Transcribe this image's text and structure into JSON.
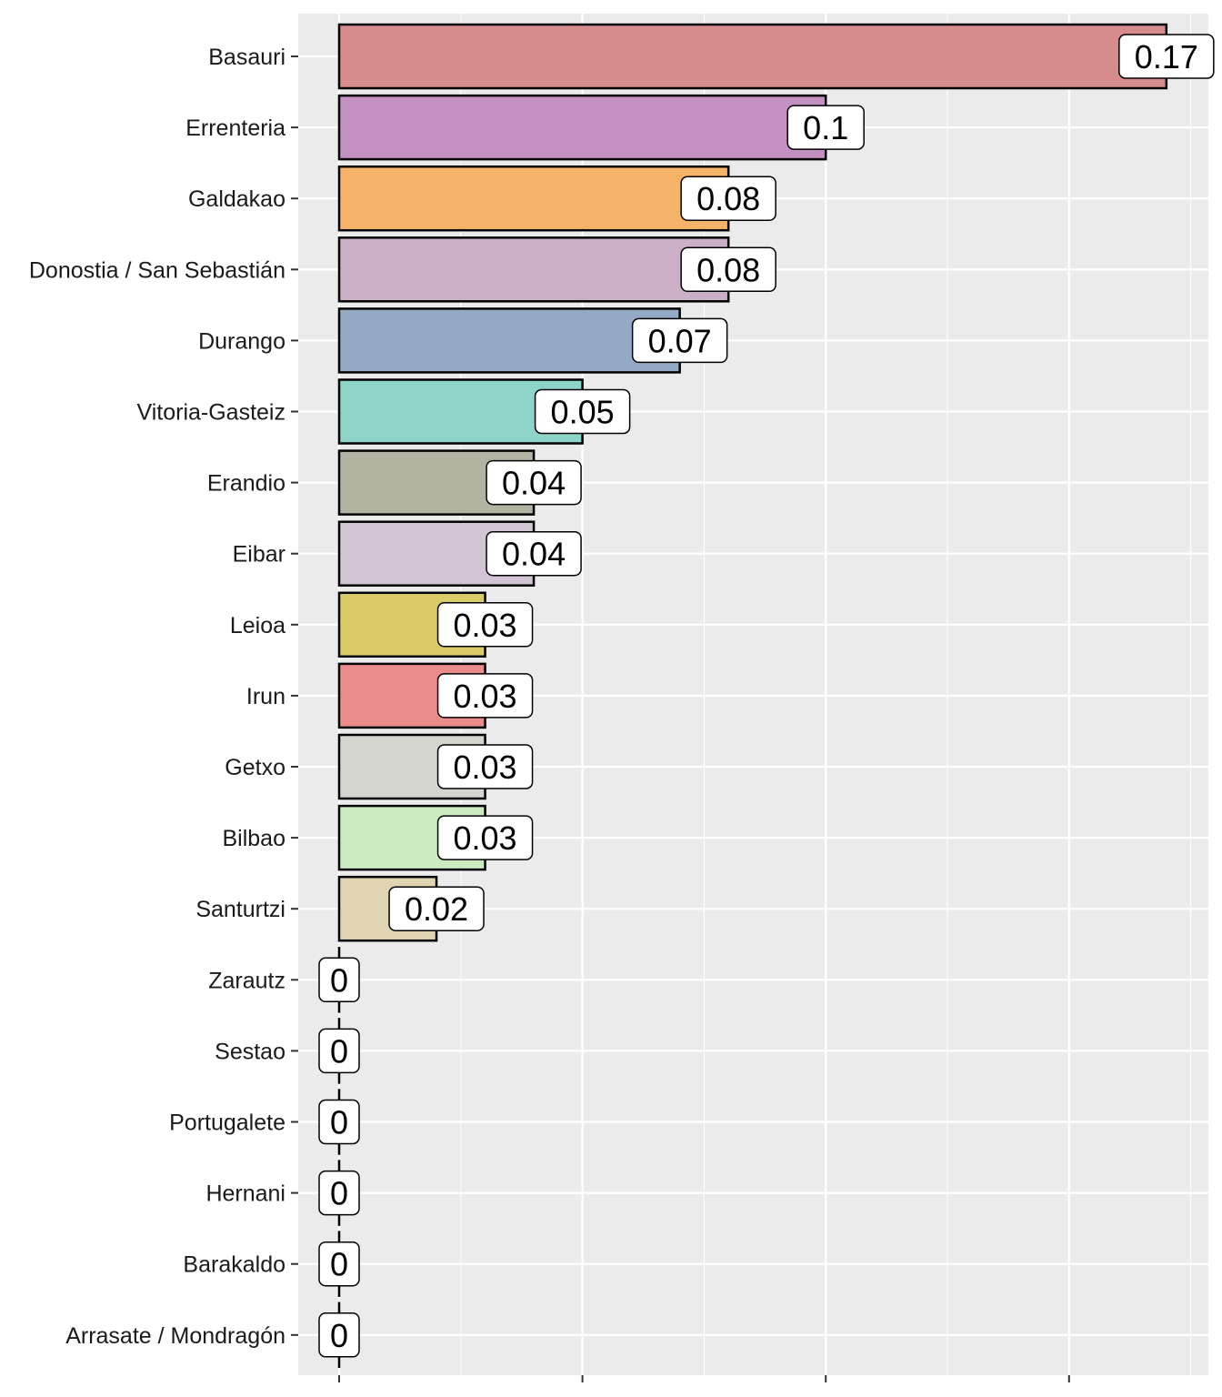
{
  "chart_data": {
    "type": "bar",
    "orientation": "horizontal",
    "title": "",
    "xlabel": "",
    "ylabel": "",
    "xlim": [
      0,
      0.18
    ],
    "x_ticks": [
      0,
      0.05,
      0.1,
      0.15
    ],
    "grid": true,
    "categories": [
      "Basauri",
      "Errenteria",
      "Galdakao",
      "Donostia / San Sebastián",
      "Durango",
      "Vitoria-Gasteiz",
      "Erandio",
      "Eibar",
      "Leioa",
      "Irun",
      "Getxo",
      "Bilbao",
      "Santurtzi",
      "Zarautz",
      "Sestao",
      "Portugalete",
      "Hernani",
      "Barakaldo",
      "Arrasate / Mondragón"
    ],
    "values": [
      0.17,
      0.1,
      0.08,
      0.08,
      0.07,
      0.05,
      0.04,
      0.04,
      0.03,
      0.03,
      0.03,
      0.03,
      0.02,
      0,
      0,
      0,
      0,
      0,
      0
    ],
    "labels": [
      "0.17",
      "0.1",
      "0.08",
      "0.08",
      "0.07",
      "0.05",
      "0.04",
      "0.04",
      "0.03",
      "0.03",
      "0.03",
      "0.03",
      "0.02",
      "0",
      "0",
      "0",
      "0",
      "0",
      "0"
    ],
    "colors": [
      "#d68c8c",
      "#c390c0",
      "#f5b269",
      "#cbafc6",
      "#93a9c4",
      "#8dd3c7",
      "#b3b3a3",
      "#d2c4d4",
      "#d9cb67",
      "#ea8d8a",
      "#d5d5cf",
      "#ccebc0",
      "#e0d5b2",
      "#bebada",
      "#80b1d3",
      "#fdb462",
      "#b3de69",
      "#fccde5",
      "#d9d9d9"
    ]
  }
}
